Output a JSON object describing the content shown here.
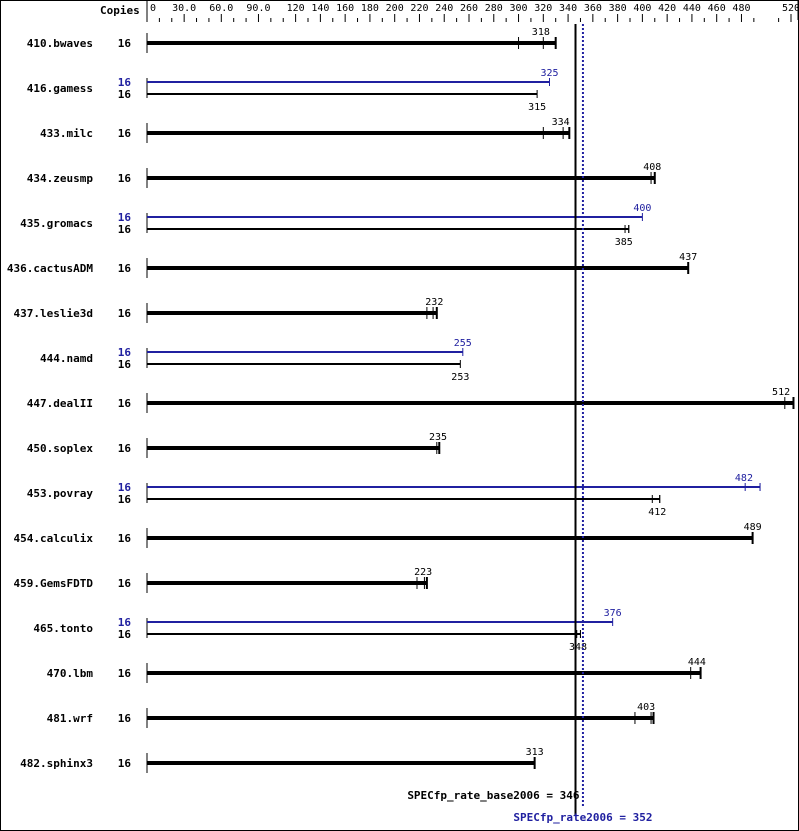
{
  "chart_data": {
    "type": "bar",
    "orientation": "horizontal",
    "copies_header": "Copies",
    "xlim": [
      0,
      520
    ],
    "x_ticks": [
      "0",
      "30.0",
      "60.0",
      "90.0",
      "120",
      "140",
      "160",
      "180",
      "200",
      "220",
      "240",
      "260",
      "280",
      "300",
      "320",
      "340",
      "360",
      "380",
      "400",
      "420",
      "440",
      "460",
      "480",
      "520"
    ],
    "x_tick_values": [
      0,
      30,
      60,
      90,
      120,
      140,
      160,
      180,
      200,
      220,
      240,
      260,
      280,
      300,
      320,
      340,
      360,
      380,
      400,
      420,
      440,
      460,
      480,
      520
    ],
    "colors": {
      "base": "#000000",
      "peak": "#2020a0"
    },
    "benchmarks": [
      {
        "name": "410.bwaves",
        "copies": "16",
        "base": 318,
        "base_runs": [
          300,
          320,
          330
        ]
      },
      {
        "name": "416.gamess",
        "copies": "16",
        "peak_copies": "16",
        "base": 315,
        "peak": 325
      },
      {
        "name": "433.milc",
        "copies": "16",
        "base": 334,
        "base_runs": [
          320,
          336,
          341
        ]
      },
      {
        "name": "434.zeusmp",
        "copies": "16",
        "base": 408,
        "base_runs": [
          407,
          410
        ]
      },
      {
        "name": "435.gromacs",
        "copies": "16",
        "peak_copies": "16",
        "base": 385,
        "base_runs": [
          386,
          389
        ],
        "peak": 400
      },
      {
        "name": "436.cactusADM",
        "copies": "16",
        "base": 437
      },
      {
        "name": "437.leslie3d",
        "copies": "16",
        "base": 232,
        "base_runs": [
          226,
          231,
          234
        ]
      },
      {
        "name": "444.namd",
        "copies": "16",
        "peak_copies": "16",
        "base": 253,
        "peak": 255
      },
      {
        "name": "447.dealII",
        "copies": "16",
        "base": 512,
        "base_runs": [
          515,
          522
        ]
      },
      {
        "name": "450.soplex",
        "copies": "16",
        "base": 235,
        "base_runs": [
          234,
          236
        ]
      },
      {
        "name": "453.povray",
        "copies": "16",
        "peak_copies": "16",
        "base": 412,
        "base_runs": [
          408,
          414
        ],
        "peak": 482,
        "peak_runs": [
          483,
          495
        ]
      },
      {
        "name": "454.calculix",
        "copies": "16",
        "base": 489
      },
      {
        "name": "459.GemsFDTD",
        "copies": "16",
        "base": 223,
        "base_runs": [
          218,
          224,
          226
        ]
      },
      {
        "name": "465.tonto",
        "copies": "16",
        "peak_copies": "16",
        "base": 348,
        "base_runs": [
          347,
          350
        ],
        "peak": 376
      },
      {
        "name": "470.lbm",
        "copies": "16",
        "base": 444,
        "base_runs": [
          439,
          447
        ]
      },
      {
        "name": "481.wrf",
        "copies": "16",
        "base": 403,
        "base_runs": [
          394,
          407,
          409
        ]
      },
      {
        "name": "482.sphinx3",
        "copies": "16",
        "base": 313
      }
    ],
    "base_metric": {
      "label": "SPECfp_rate_base2006 = 346",
      "value": 346
    },
    "peak_metric": {
      "label": "SPECfp_rate2006 = 352",
      "value": 352
    }
  }
}
